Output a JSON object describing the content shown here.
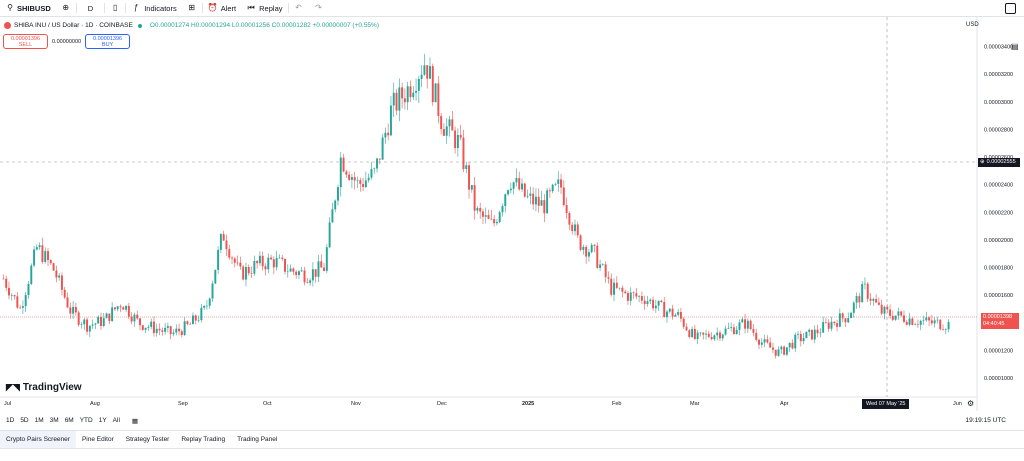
{
  "toolbar": {
    "symbol": "SHIBUSD",
    "interval": "D",
    "indicators_label": "Indicators",
    "alert_label": "Alert",
    "replay_label": "Replay"
  },
  "legend": {
    "title": "SHIBA INU / US Dollar · 1D · COINBASE",
    "ohlc": "O0.00001274 H0.00001294 L0.00001256 C0.00001282 +0.00000007 (+0.55%)"
  },
  "trade": {
    "sell_price": "0.00001396",
    "sell_label": "SELL",
    "spread": "0.00000000",
    "buy_price": "0.00001396",
    "buy_label": "BUY"
  },
  "price_axis": {
    "currency": "USD",
    "ticks": [
      "0.00003400",
      "0.00003200",
      "0.00003000",
      "0.00002800",
      "0.00002600",
      "0.00002400",
      "0.00002200",
      "0.00002000",
      "0.00001800",
      "0.00001600",
      "0.00001400",
      "0.00001200",
      "0.00001000"
    ],
    "crosshair_price": "0.00002555",
    "last_price": "0.00001398",
    "last_countdown": "04:40:45"
  },
  "time_axis": {
    "labels": [
      "Jul",
      "Aug",
      "Sep",
      "Oct",
      "Nov",
      "Dec",
      "2025",
      "Feb",
      "Mar",
      "Apr",
      "Jun"
    ],
    "crosshair_date": "Wed 07 May '25"
  },
  "ranges": [
    "1D",
    "5D",
    "1M",
    "3M",
    "6M",
    "YTD",
    "1Y",
    "All"
  ],
  "clock": "19:19:15 UTC",
  "bottom_tabs": [
    "Crypto Pairs Screener",
    "Pine Editor",
    "Strategy Tester",
    "Replay Trading",
    "Trading Panel"
  ],
  "brand": "TradingView",
  "colors": {
    "up": "#26a69a",
    "down": "#ef5350"
  },
  "chart_data": {
    "type": "candlestick",
    "unit": "USD",
    "ylim": [
      9.5e-06,
      3.52e-05
    ],
    "date_range": [
      "2024-07",
      "2025-06"
    ],
    "approx_closes": [
      1.72e-05,
      1.5e-05,
      1.95e-05,
      1.78e-05,
      1.48e-05,
      1.38e-05,
      1.42e-05,
      1.55e-05,
      1.4e-05,
      1.36e-05,
      1.32e-05,
      1.38e-05,
      1.5e-05,
      2.05e-05,
      1.75e-05,
      1.82e-05,
      1.85e-05,
      1.78e-05,
      1.75e-05,
      1.8e-05,
      2.6e-05,
      2.4e-05,
      2.48e-05,
      2.95e-05,
      3.1e-05,
      3.3e-05,
      2.85e-05,
      2.7e-05,
      2.2e-05,
      2.1e-05,
      2.45e-05,
      2.3e-05,
      2.25e-05,
      2.4e-05,
      2e-05,
      1.9e-05,
      1.65e-05,
      1.6e-05,
      1.58e-05,
      1.5e-05,
      1.45e-05,
      1.28e-05,
      1.32e-05,
      1.35e-05,
      1.4e-05,
      1.25e-05,
      1.18e-05,
      1.28e-05,
      1.32e-05,
      1.4e-05,
      1.45e-05,
      1.65e-05,
      1.48e-05,
      1.45e-05,
      1.42e-05,
      1.4e-05,
      1.39e-05
    ]
  }
}
